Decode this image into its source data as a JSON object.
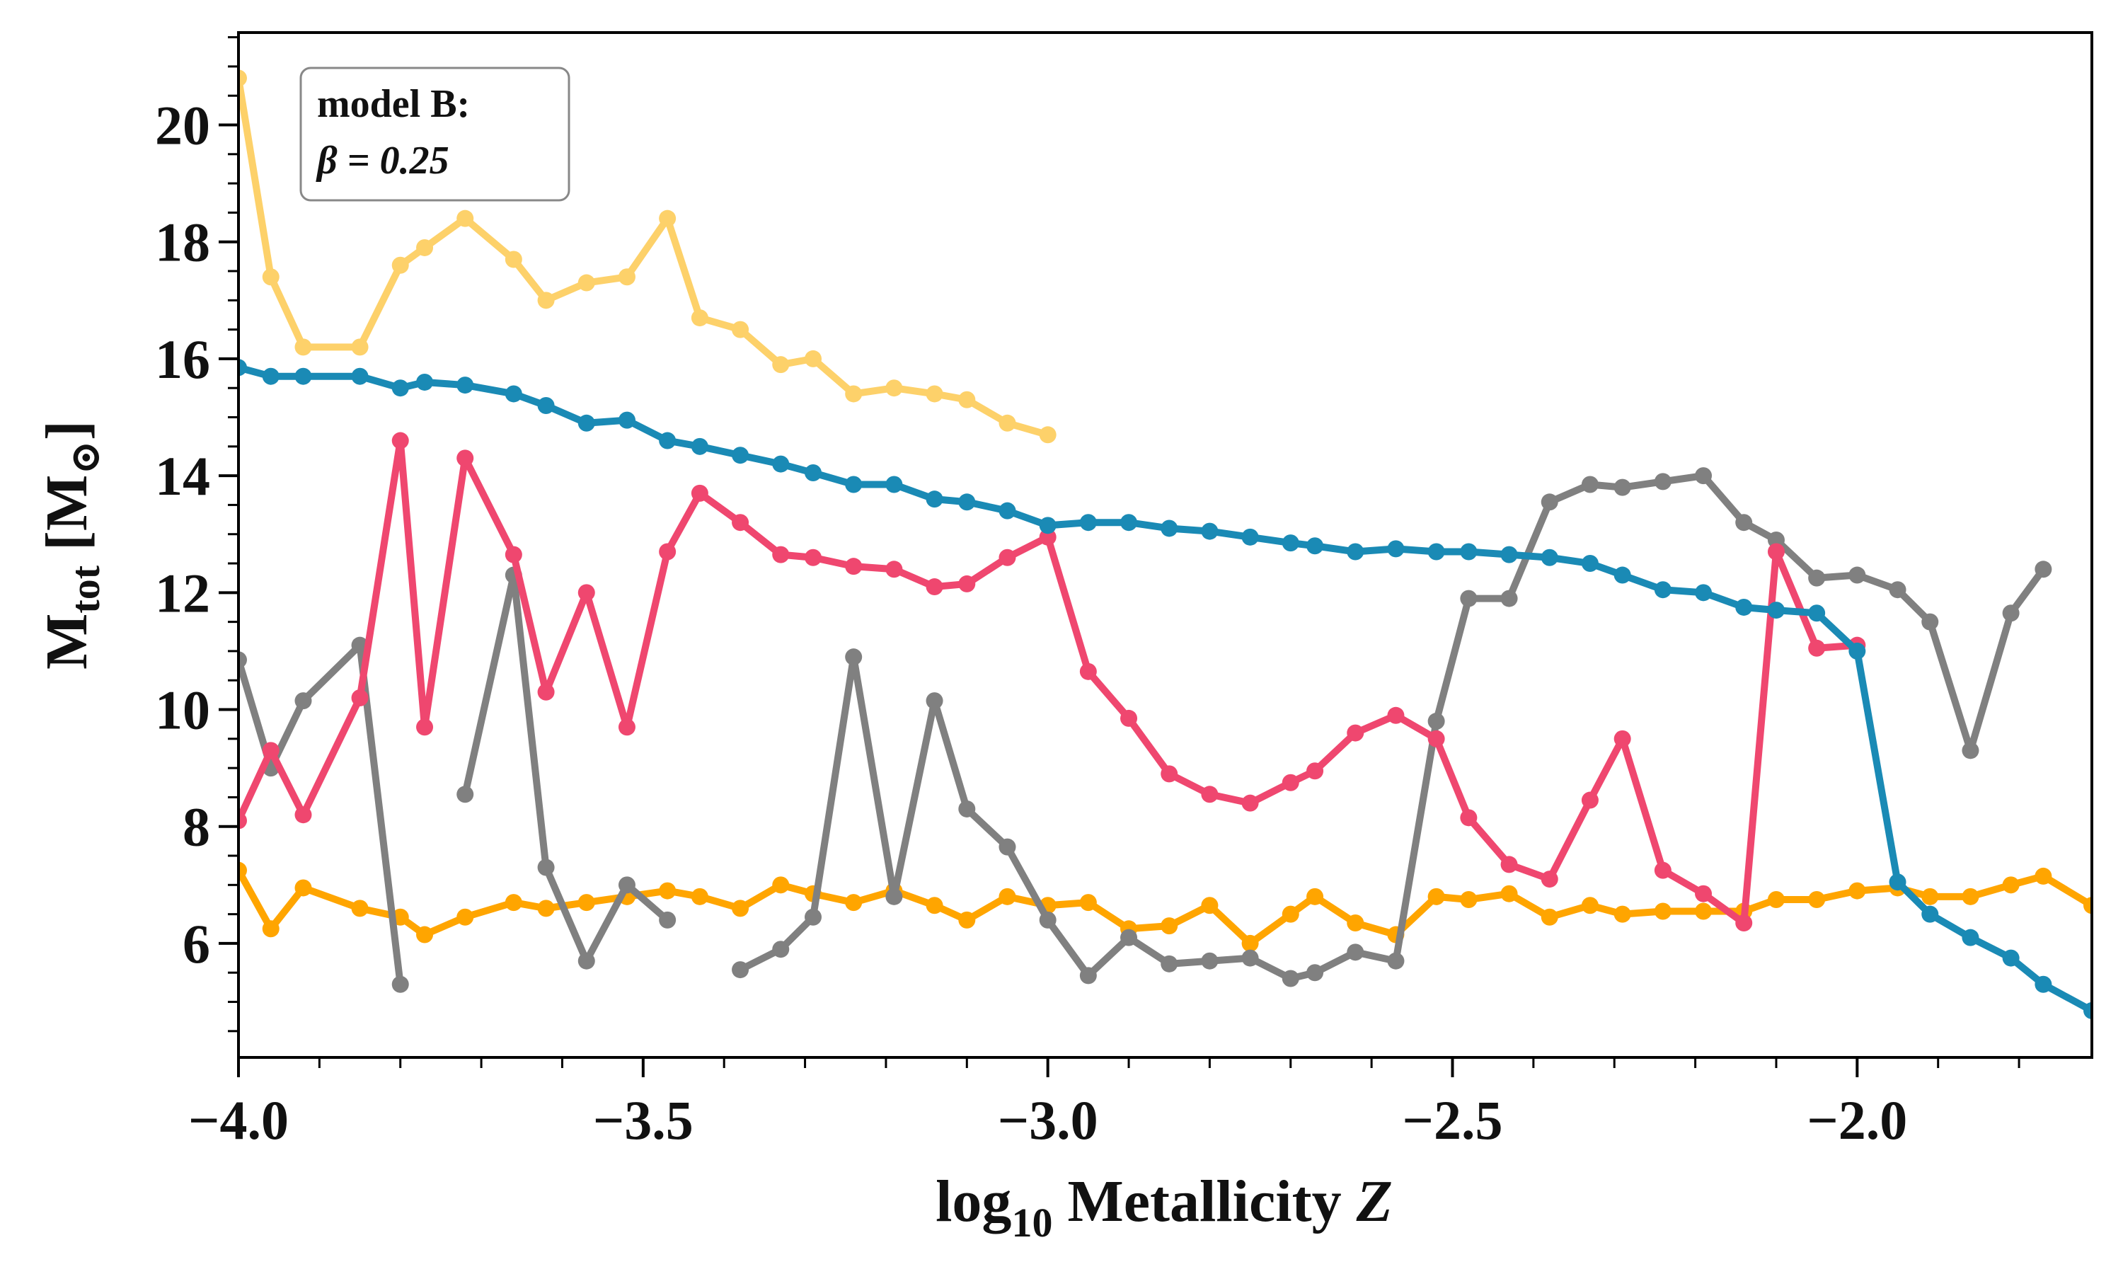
{
  "chart_data": {
    "type": "line",
    "xlabel": [
      "log",
      "10",
      " Metallicity ",
      "Z"
    ],
    "ylabel": [
      "M",
      "tot",
      " [M",
      "⊙",
      "]"
    ],
    "annotation": [
      "model B:",
      "β = 0.25"
    ],
    "xlim": [
      -4.0,
      -1.71
    ],
    "ylim": [
      4.05,
      21.58
    ],
    "xticks": [
      {
        "value": -4.0,
        "label": "−4.0"
      },
      {
        "value": -3.5,
        "label": "−3.5"
      },
      {
        "value": -3.0,
        "label": "−3.0"
      },
      {
        "value": -2.5,
        "label": "−2.5"
      },
      {
        "value": -2.0,
        "label": "−2.0"
      }
    ],
    "yticks": [
      6,
      8,
      10,
      12,
      14,
      16,
      18,
      20
    ],
    "x": [
      -4.0,
      -3.96,
      -3.92,
      -3.85,
      -3.8,
      -3.77,
      -3.72,
      -3.66,
      -3.62,
      -3.57,
      -3.52,
      -3.47,
      -3.43,
      -3.38,
      -3.33,
      -3.29,
      -3.24,
      -3.19,
      -3.14,
      -3.1,
      -3.05,
      -3.0,
      -2.95,
      -2.9,
      -2.85,
      -2.8,
      -2.75,
      -2.7,
      -2.67,
      -2.62,
      -2.57,
      -2.52,
      -2.48,
      -2.43,
      -2.38,
      -2.33,
      -2.29,
      -2.24,
      -2.19,
      -2.14,
      -2.1,
      -2.05,
      -2.0,
      -1.95,
      -1.91,
      -1.86,
      -1.81,
      -1.77,
      -1.71
    ],
    "series": [
      {
        "color": "#ffa500",
        "values": [
          7.25,
          6.25,
          6.95,
          6.6,
          6.45,
          6.15,
          6.45,
          6.7,
          6.6,
          6.7,
          6.8,
          6.9,
          6.8,
          6.6,
          7.0,
          6.85,
          6.7,
          6.9,
          6.65,
          6.4,
          6.8,
          6.65,
          6.7,
          6.25,
          6.3,
          6.65,
          6.0,
          6.5,
          6.8,
          6.35,
          6.15,
          6.8,
          6.75,
          6.85,
          6.45,
          6.65,
          6.5,
          6.55,
          6.55,
          6.55,
          6.75,
          6.75,
          6.9,
          6.95,
          6.8,
          6.8,
          7.0,
          7.15,
          6.65
        ]
      },
      {
        "color": "#808080",
        "values": [
          10.85,
          9.0,
          10.15,
          11.1,
          5.3,
          null,
          8.55,
          12.3,
          7.3,
          5.7,
          7.0,
          6.4,
          null,
          5.55,
          5.9,
          6.45,
          10.9,
          6.8,
          10.15,
          8.3,
          7.65,
          6.4,
          5.45,
          6.1,
          5.65,
          5.7,
          5.75,
          5.4,
          5.5,
          5.85,
          5.7,
          9.8,
          11.9,
          11.9,
          13.55,
          13.85,
          13.8,
          13.9,
          14.0,
          13.2,
          12.9,
          12.25,
          12.3,
          12.05,
          11.5,
          9.3,
          11.65,
          12.4,
          null
        ]
      },
      {
        "color": "#ef476f",
        "values": [
          8.1,
          9.3,
          8.2,
          10.2,
          14.6,
          9.7,
          14.3,
          12.65,
          10.3,
          12.0,
          9.7,
          12.7,
          13.7,
          13.2,
          12.65,
          12.6,
          12.45,
          12.4,
          12.1,
          12.15,
          12.6,
          12.95,
          10.65,
          9.85,
          8.9,
          8.55,
          8.4,
          8.75,
          8.95,
          9.6,
          9.9,
          9.5,
          8.15,
          7.35,
          7.1,
          8.45,
          9.5,
          7.25,
          6.85,
          6.35,
          12.7,
          11.05,
          11.1,
          null,
          null,
          null,
          null,
          null,
          null
        ]
      },
      {
        "color": "#1a8ab5",
        "values": [
          15.85,
          15.7,
          15.7,
          15.7,
          15.5,
          15.6,
          15.55,
          15.4,
          15.2,
          14.9,
          14.95,
          14.6,
          14.5,
          14.35,
          14.2,
          14.05,
          13.85,
          13.85,
          13.6,
          13.55,
          13.4,
          13.15,
          13.2,
          13.2,
          13.1,
          13.05,
          12.95,
          12.85,
          12.8,
          12.7,
          12.75,
          12.7,
          12.7,
          12.65,
          12.6,
          12.5,
          12.3,
          12.05,
          12.0,
          11.75,
          11.7,
          11.65,
          11.0,
          7.05,
          6.5,
          6.1,
          5.75,
          5.3,
          4.85
        ]
      },
      {
        "color": "#fdd16a",
        "values": [
          20.8,
          17.4,
          16.2,
          16.2,
          17.6,
          17.9,
          18.4,
          17.7,
          17.0,
          17.3,
          17.4,
          18.4,
          16.7,
          16.5,
          15.9,
          16.0,
          15.4,
          15.5,
          15.4,
          15.3,
          14.9,
          14.7,
          null,
          null,
          null,
          null,
          null,
          null,
          null,
          null,
          null,
          null,
          null,
          null,
          null,
          null,
          null,
          null,
          null,
          null,
          null,
          null,
          null,
          null,
          null,
          null,
          null,
          null,
          null
        ]
      }
    ]
  }
}
